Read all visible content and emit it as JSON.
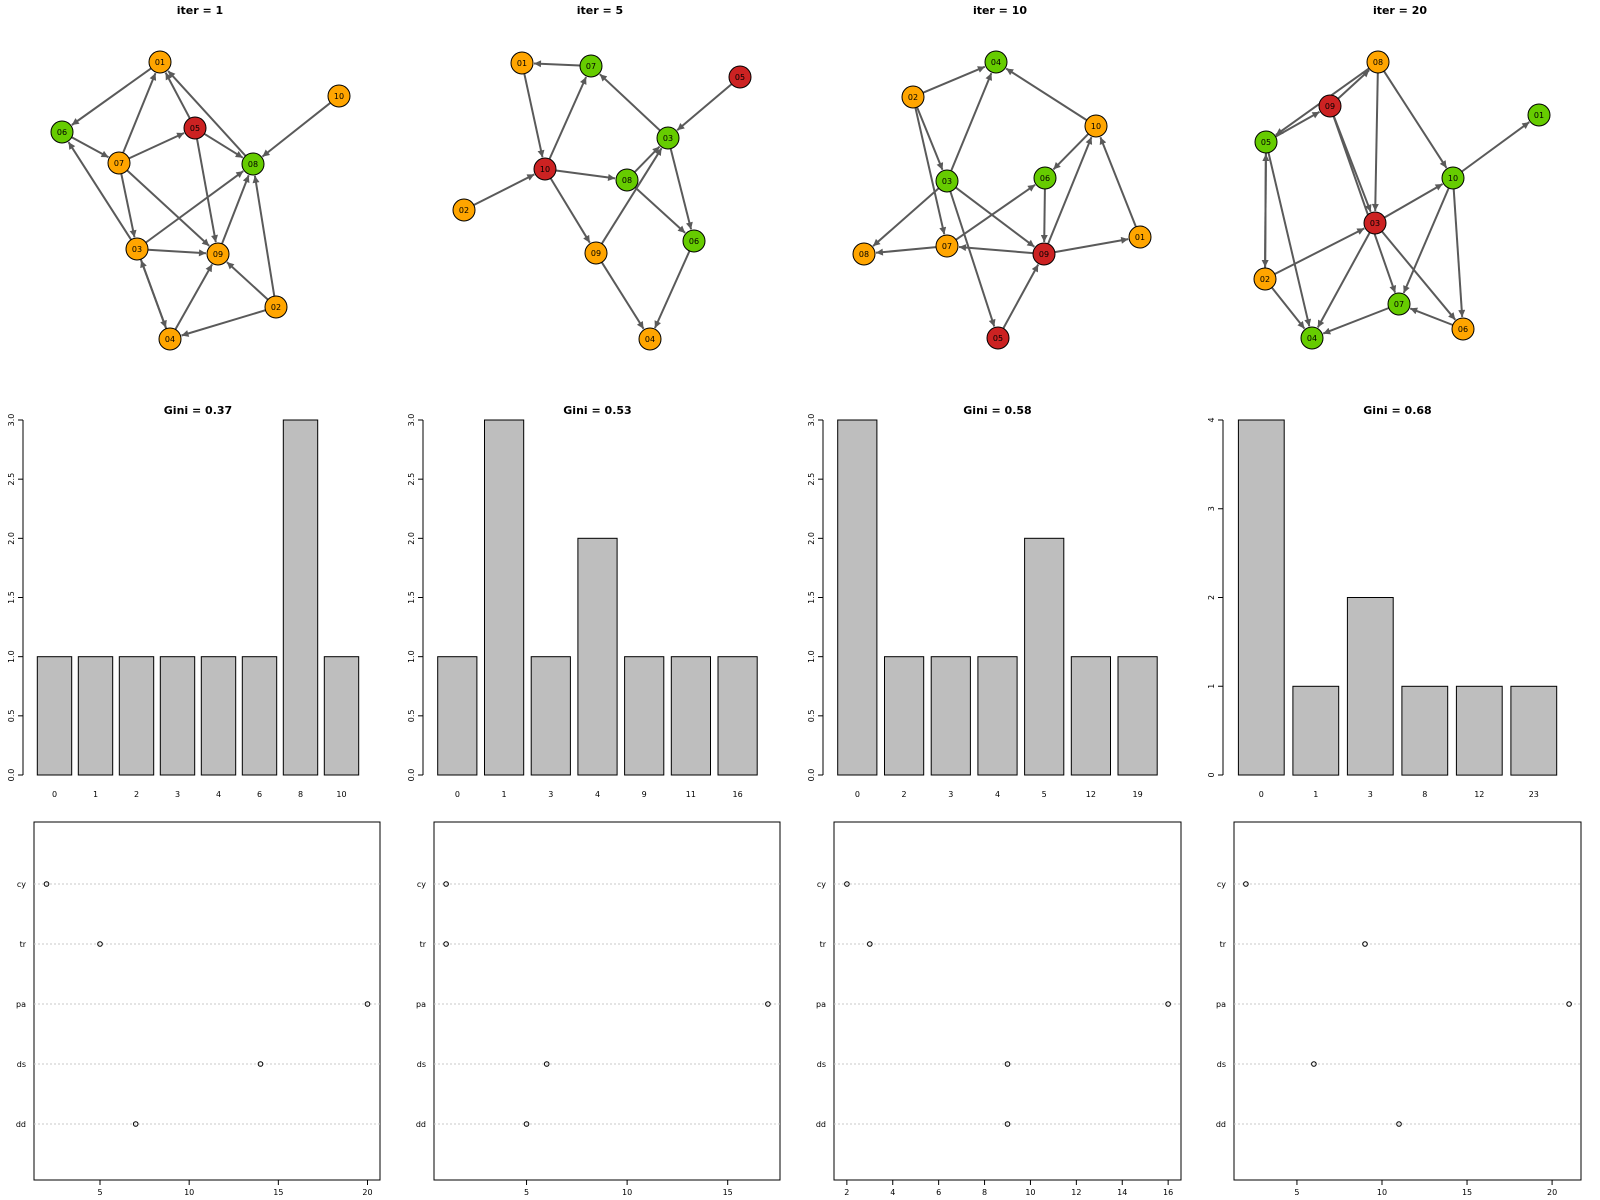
{
  "colors": {
    "green": "#66cc00",
    "orange": "#ffa500",
    "red": "#cc2222",
    "edge": "#5a5a5a",
    "bar": "#bebebe",
    "grid": "#c8c8c8"
  },
  "chart_data": [
    {
      "type": "network",
      "title": "iter = 1",
      "nodes": [
        {
          "id": "01",
          "color": "orange"
        },
        {
          "id": "02",
          "color": "orange"
        },
        {
          "id": "03",
          "color": "orange"
        },
        {
          "id": "04",
          "color": "orange"
        },
        {
          "id": "05",
          "color": "red"
        },
        {
          "id": "06",
          "color": "green"
        },
        {
          "id": "07",
          "color": "orange"
        },
        {
          "id": "08",
          "color": "green"
        },
        {
          "id": "09",
          "color": "orange"
        },
        {
          "id": "10",
          "color": "orange"
        }
      ],
      "edges": [
        [
          "01",
          "06"
        ],
        [
          "07",
          "01"
        ],
        [
          "05",
          "01"
        ],
        [
          "08",
          "01"
        ],
        [
          "07",
          "05"
        ],
        [
          "10",
          "08"
        ],
        [
          "06",
          "07"
        ],
        [
          "05",
          "08"
        ],
        [
          "07",
          "03"
        ],
        [
          "05",
          "09"
        ],
        [
          "03",
          "09"
        ],
        [
          "03",
          "06"
        ],
        [
          "03",
          "08"
        ],
        [
          "07",
          "09"
        ],
        [
          "09",
          "08"
        ],
        [
          "04",
          "03"
        ],
        [
          "03",
          "04"
        ],
        [
          "04",
          "09"
        ],
        [
          "02",
          "09"
        ],
        [
          "02",
          "08"
        ],
        [
          "02",
          "04"
        ]
      ]
    },
    {
      "type": "network",
      "title": "iter = 5",
      "nodes": [
        {
          "id": "01",
          "color": "orange"
        },
        {
          "id": "02",
          "color": "orange"
        },
        {
          "id": "03",
          "color": "green"
        },
        {
          "id": "04",
          "color": "orange"
        },
        {
          "id": "05",
          "color": "red"
        },
        {
          "id": "06",
          "color": "green"
        },
        {
          "id": "07",
          "color": "green"
        },
        {
          "id": "08",
          "color": "green"
        },
        {
          "id": "09",
          "color": "orange"
        },
        {
          "id": "10",
          "color": "red"
        }
      ],
      "edges": [
        [
          "07",
          "01"
        ],
        [
          "01",
          "10"
        ],
        [
          "10",
          "07"
        ],
        [
          "03",
          "07"
        ],
        [
          "05",
          "03"
        ],
        [
          "02",
          "10"
        ],
        [
          "10",
          "08"
        ],
        [
          "08",
          "03"
        ],
        [
          "03",
          "06"
        ],
        [
          "08",
          "06"
        ],
        [
          "10",
          "09"
        ],
        [
          "09",
          "03"
        ],
        [
          "09",
          "04"
        ],
        [
          "06",
          "04"
        ]
      ]
    },
    {
      "type": "network",
      "title": "iter = 10",
      "nodes": [
        {
          "id": "01",
          "color": "orange"
        },
        {
          "id": "02",
          "color": "orange"
        },
        {
          "id": "03",
          "color": "green"
        },
        {
          "id": "04",
          "color": "green"
        },
        {
          "id": "05",
          "color": "red"
        },
        {
          "id": "06",
          "color": "green"
        },
        {
          "id": "07",
          "color": "orange"
        },
        {
          "id": "08",
          "color": "orange"
        },
        {
          "id": "09",
          "color": "red"
        },
        {
          "id": "10",
          "color": "orange"
        }
      ],
      "edges": [
        [
          "02",
          "04"
        ],
        [
          "03",
          "04"
        ],
        [
          "10",
          "04"
        ],
        [
          "10",
          "06"
        ],
        [
          "01",
          "10"
        ],
        [
          "09",
          "10"
        ],
        [
          "02",
          "03"
        ],
        [
          "03",
          "05"
        ],
        [
          "02",
          "07"
        ],
        [
          "03",
          "08"
        ],
        [
          "07",
          "08"
        ],
        [
          "09",
          "07"
        ],
        [
          "09",
          "01"
        ],
        [
          "06",
          "09"
        ],
        [
          "05",
          "09"
        ],
        [
          "03",
          "09"
        ],
        [
          "07",
          "06"
        ]
      ]
    },
    {
      "type": "network",
      "title": "iter = 20",
      "nodes": [
        {
          "id": "01",
          "color": "green"
        },
        {
          "id": "02",
          "color": "orange"
        },
        {
          "id": "03",
          "color": "red"
        },
        {
          "id": "04",
          "color": "green"
        },
        {
          "id": "05",
          "color": "green"
        },
        {
          "id": "06",
          "color": "orange"
        },
        {
          "id": "07",
          "color": "green"
        },
        {
          "id": "08",
          "color": "orange"
        },
        {
          "id": "09",
          "color": "red"
        },
        {
          "id": "10",
          "color": "green"
        }
      ],
      "edges": [
        [
          "08",
          "05"
        ],
        [
          "09",
          "08"
        ],
        [
          "05",
          "09"
        ],
        [
          "08",
          "03"
        ],
        [
          "08",
          "10"
        ],
        [
          "09",
          "07"
        ],
        [
          "10",
          "01"
        ],
        [
          "03",
          "10"
        ],
        [
          "02",
          "03"
        ],
        [
          "05",
          "02"
        ],
        [
          "02",
          "05"
        ],
        [
          "05",
          "04"
        ],
        [
          "02",
          "04"
        ],
        [
          "03",
          "04"
        ],
        [
          "03",
          "06"
        ],
        [
          "10",
          "06"
        ],
        [
          "10",
          "07"
        ],
        [
          "07",
          "04"
        ],
        [
          "06",
          "07"
        ],
        [
          "09",
          "03"
        ]
      ]
    },
    {
      "type": "bar",
      "title": "Gini = 0.37",
      "categories": [
        "0",
        "1",
        "2",
        "3",
        "4",
        "6",
        "8",
        "10"
      ],
      "values": [
        1,
        1,
        1,
        1,
        1,
        1,
        3,
        1
      ],
      "ylim": [
        0,
        3
      ],
      "yticks": [
        "0.0",
        "0.5",
        "1.0",
        "1.5",
        "2.0",
        "2.5",
        "3.0"
      ]
    },
    {
      "type": "bar",
      "title": "Gini = 0.53",
      "categories": [
        "0",
        "1",
        "3",
        "4",
        "9",
        "11",
        "16"
      ],
      "values": [
        1,
        3,
        1,
        2,
        1,
        1,
        1
      ],
      "ylim": [
        0,
        3
      ],
      "yticks": [
        "0.0",
        "0.5",
        "1.0",
        "1.5",
        "2.0",
        "2.5",
        "3.0"
      ]
    },
    {
      "type": "bar",
      "title": "Gini = 0.58",
      "categories": [
        "0",
        "2",
        "3",
        "4",
        "5",
        "12",
        "19"
      ],
      "values": [
        3,
        1,
        1,
        1,
        2,
        1,
        1
      ],
      "ylim": [
        0,
        3
      ],
      "yticks": [
        "0.0",
        "0.5",
        "1.0",
        "1.5",
        "2.0",
        "2.5",
        "3.0"
      ]
    },
    {
      "type": "bar",
      "title": "Gini = 0.68",
      "categories": [
        "0",
        "1",
        "3",
        "8",
        "12",
        "23"
      ],
      "values": [
        4,
        1,
        2,
        1,
        1,
        1
      ],
      "ylim": [
        0,
        4
      ],
      "yticks": [
        "0",
        "1",
        "2",
        "3",
        "4"
      ]
    },
    {
      "type": "scatter",
      "categories": [
        "cy",
        "tr",
        "pa",
        "ds",
        "dd"
      ],
      "values": [
        2,
        5,
        20,
        14,
        7
      ],
      "xlim": [
        1.3,
        20.7
      ],
      "xticks": [
        "5",
        "10",
        "15",
        "20"
      ]
    },
    {
      "type": "scatter",
      "categories": [
        "cy",
        "tr",
        "pa",
        "ds",
        "dd"
      ],
      "values": [
        1,
        1,
        17,
        6,
        5
      ],
      "xlim": [
        0.4,
        17.6
      ],
      "xticks": [
        "5",
        "10",
        "15"
      ]
    },
    {
      "type": "scatter",
      "categories": [
        "cy",
        "tr",
        "pa",
        "ds",
        "dd"
      ],
      "values": [
        2,
        3,
        16,
        9,
        9
      ],
      "xlim": [
        1.44,
        16.56
      ],
      "xticks": [
        "2",
        "4",
        "6",
        "8",
        "10",
        "12",
        "14",
        "16"
      ]
    },
    {
      "type": "scatter",
      "categories": [
        "cy",
        "tr",
        "pa",
        "ds",
        "dd"
      ],
      "values": [
        2,
        9,
        21,
        6,
        11
      ],
      "xlim": [
        1.3,
        21.7
      ],
      "xticks": [
        "5",
        "10",
        "15",
        "20"
      ]
    }
  ]
}
